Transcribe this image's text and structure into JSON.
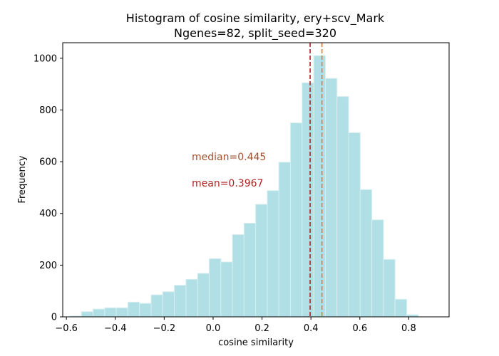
{
  "chart_data": {
    "type": "bar",
    "title": "Histogram of cosine similarity, ery+scv_Mark",
    "subtitle": "Ngenes=82, split_seed=320",
    "xlabel": "cosine similarity",
    "ylabel": "Frequency",
    "xlim": [
      -0.615,
      0.965
    ],
    "ylim": [
      0,
      1060
    ],
    "xticks": [
      -0.6,
      -0.4,
      -0.2,
      0.0,
      0.2,
      0.4,
      0.6,
      0.8
    ],
    "xtick_labels": [
      "−0.6",
      "−0.4",
      "−0.2",
      "0.0",
      "0.2",
      "0.4",
      "0.6",
      "0.8"
    ],
    "yticks": [
      0,
      200,
      400,
      600,
      800,
      1000
    ],
    "ytick_labels": [
      "0",
      "200",
      "400",
      "600",
      "800",
      "1000"
    ],
    "bin_width": 0.0475,
    "bin_starts": [
      -0.586,
      -0.5385,
      -0.491,
      -0.4435,
      -0.396,
      -0.3485,
      -0.301,
      -0.2535,
      -0.206,
      -0.1585,
      -0.111,
      -0.0635,
      -0.016,
      0.0315,
      0.079,
      0.1265,
      0.174,
      0.2215,
      0.269,
      0.3165,
      0.364,
      0.4115,
      0.459,
      0.5065,
      0.554,
      0.6015,
      0.649,
      0.6965,
      0.744,
      0.7915,
      0.839
    ],
    "values": [
      3,
      20,
      30,
      35,
      35,
      57,
      52,
      85,
      97,
      122,
      145,
      168,
      225,
      212,
      318,
      362,
      435,
      488,
      598,
      750,
      905,
      1010,
      922,
      852,
      712,
      492,
      375,
      222,
      68,
      8,
      0
    ],
    "bar_color": "#b0dfe5",
    "bar_edge_color": "#d6eef1",
    "vlines": [
      {
        "x": 0.3967,
        "color": "#b22222",
        "style": "dashed"
      },
      {
        "x": 0.445,
        "color": "#e07b39",
        "style": "dashed"
      }
    ],
    "annotations": [
      {
        "text": "median=0.445",
        "color": "#a0522d"
      },
      {
        "text": "mean=0.3967",
        "color": "#b22222"
      }
    ]
  }
}
